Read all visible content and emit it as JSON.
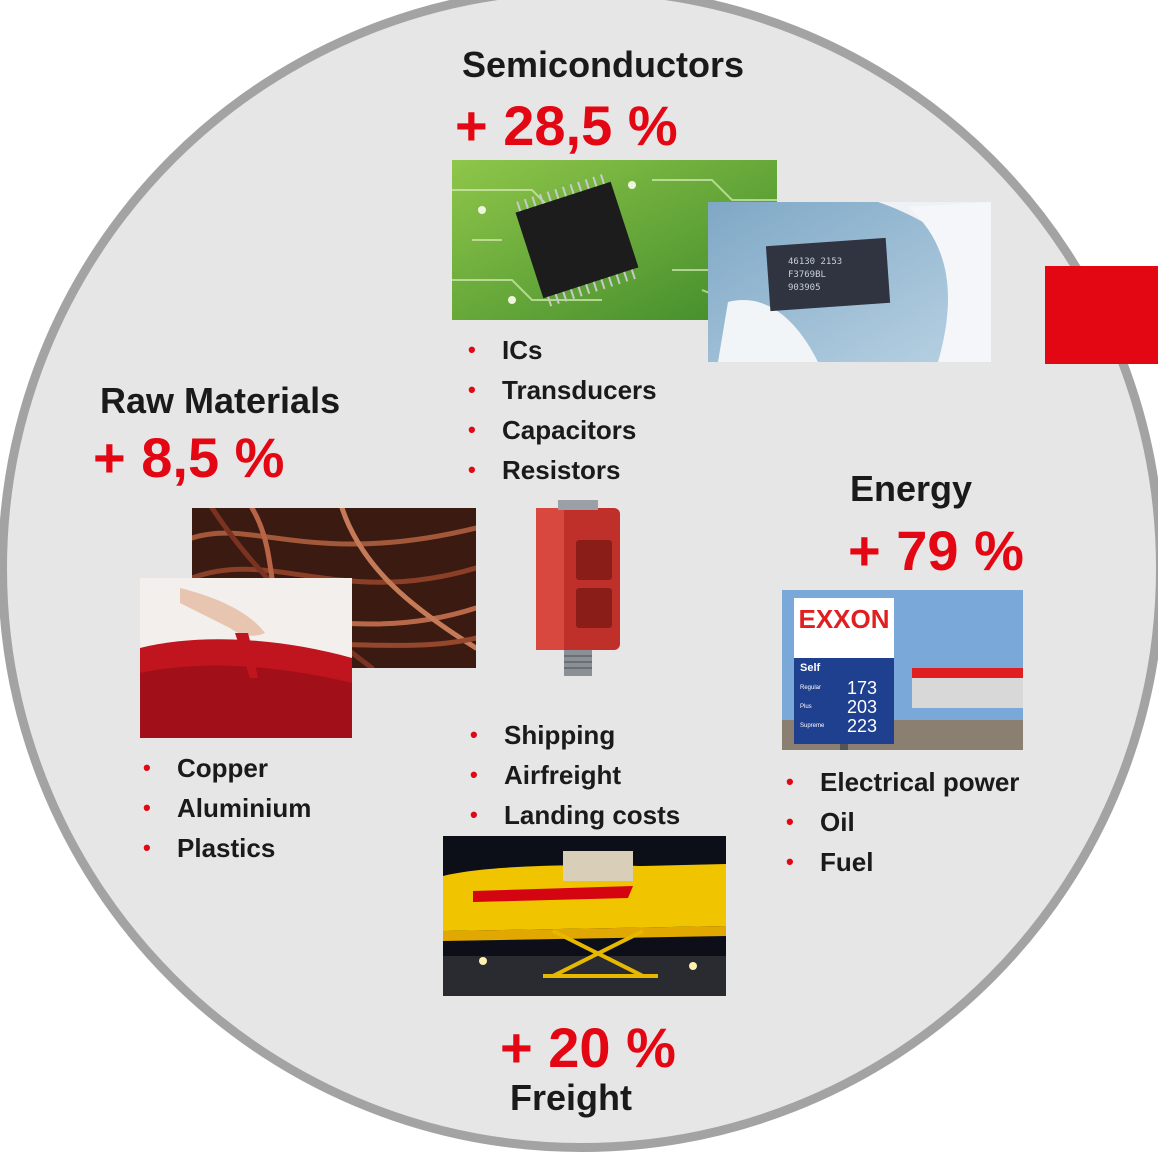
{
  "semiconductors": {
    "title": "Semiconductors",
    "increase": "+ 28,5 %",
    "items": [
      "ICs",
      "Transducers",
      "Capacitors",
      "Resistors"
    ]
  },
  "raw_materials": {
    "title": "Raw Materials",
    "increase": "+ 8,5 %",
    "items": [
      "Copper",
      "Aluminium",
      "Plastics"
    ]
  },
  "energy": {
    "title": "Energy",
    "increase": "+ 79 %",
    "items": [
      "Electrical power",
      "Oil",
      "Fuel"
    ],
    "sign": {
      "brand": "EXXON",
      "self_label": "Self",
      "grades": [
        "Regular",
        "Plus",
        "Supreme"
      ],
      "prices": [
        "173",
        "203",
        "223"
      ]
    }
  },
  "freight": {
    "title": "Freight",
    "increase": "+ 20 %",
    "items": [
      "Shipping",
      "Airfreight",
      "Landing costs"
    ]
  },
  "colors": {
    "accent": "#e30613",
    "circle_fill": "#e6e6e6",
    "circle_border": "#a3a3a3"
  }
}
